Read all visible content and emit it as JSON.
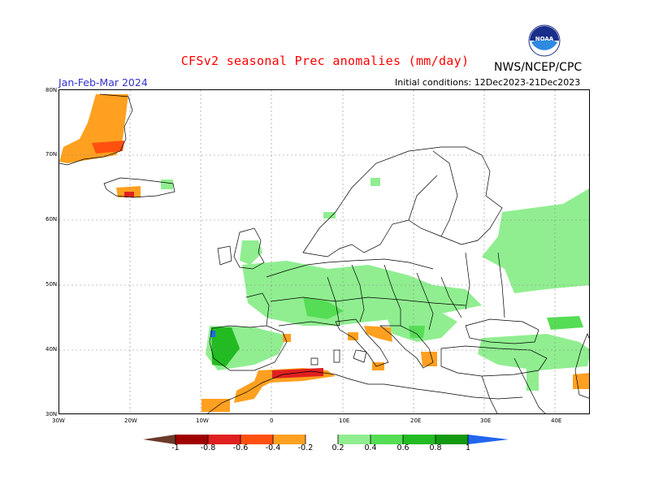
{
  "header": {
    "title": "CFSv2 seasonal Prec anomalies (mm/day)",
    "agency": "NWS/NCEP/CPC",
    "period": "Jan-Feb-Mar 2024",
    "initial_conditions": "Initial conditions: 12Dec2023-21Dec2023",
    "logo_text": "NOAA"
  },
  "map": {
    "lat_labels": [
      "80N",
      "70N",
      "60N",
      "50N",
      "40N",
      "30N"
    ],
    "lon_labels": [
      "30W",
      "20W",
      "10W",
      "0",
      "10E",
      "20E",
      "30E",
      "40E"
    ],
    "grid_lines": "dotted"
  },
  "legend": {
    "labels": [
      "-1",
      "-0.8",
      "-0.6",
      "-0.4",
      "-0.2",
      "0.2",
      "0.4",
      "0.6",
      "0.8",
      "1"
    ],
    "colors": {
      "below_min": "#6b3a2a",
      "neg_1_08": "#a00000",
      "neg_08_06": "#e02020",
      "neg_06_04": "#ff5010",
      "neg_04_02": "#ffa020",
      "neutral": "#ffffff",
      "pos_02_04": "#90ee90",
      "pos_04_06": "#55dd55",
      "pos_06_08": "#22bb22",
      "pos_08_1": "#119911",
      "above_max": "#2266ee"
    }
  }
}
